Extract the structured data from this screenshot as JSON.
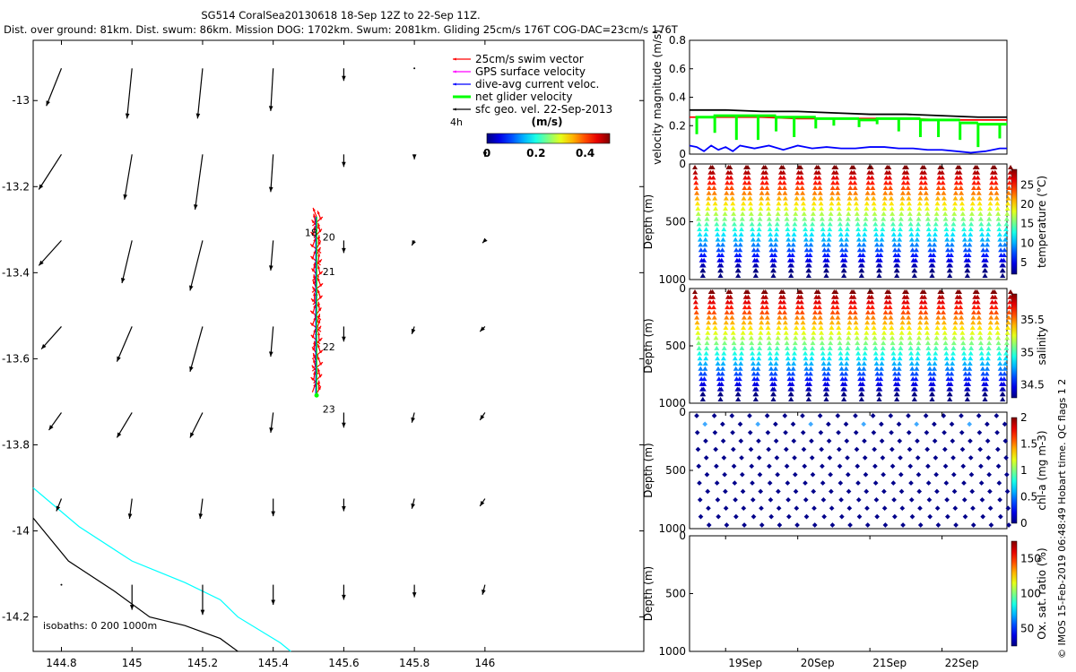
{
  "header": {
    "line1": "SG514 CoralSea20130618 18-Sep 12Z to 22-Sep 11Z.",
    "line2": "Dist. over ground: 81km. Dist. swum: 86km. Mission DOG: 1702km. Swum: 2081km. Gliding 25cm/s 176T COG-DAC=23cm/s 176T"
  },
  "watermark": "© IMOS 15-Feb-2019 06:48:49 Hobart time. QC flags 1 2",
  "colors": {
    "swim": "#ff0000",
    "gps": "#ff00ff",
    "current": "#0000ff",
    "net": "#00ff00",
    "geo": "#000000",
    "isobath0": "#000000",
    "isobath200": "#00ffff"
  },
  "chart_data": [
    {
      "type": "scatter",
      "name": "map",
      "xlim": [
        144.72,
        146.45
      ],
      "ylim": [
        -14.28,
        -12.86
      ],
      "xticks": [
        144.8,
        145,
        145.2,
        145.4,
        145.6,
        145.8,
        146
      ],
      "xtick_labels": [
        "144.8",
        "145",
        "145.2",
        "145.4",
        "145.6",
        "145.8",
        "146"
      ],
      "yticks": [
        -13,
        -13.2,
        -13.4,
        -13.6,
        -13.8,
        -14,
        -14.2
      ],
      "ytick_labels": [
        "-13",
        "-13.2",
        "-13.4",
        "-13.6",
        "-13.8",
        "-14",
        "-14.2"
      ],
      "legend": {
        "placement": "top-right",
        "entries": [
          "25cm/s swim vector",
          "GPS surface velocity",
          "dive-avg current veloc.",
          "net glider velocity",
          "sfc geo. vel. 22-Sep-2013"
        ]
      },
      "colorbar": {
        "label": "(m/s)",
        "min": 0,
        "max": 0.5,
        "ticks": [
          0,
          0.2,
          0.4
        ],
        "tick_labels": [
          "0",
          "0.2",
          "0.4"
        ]
      },
      "annotations": {
        "scale_text": "4h",
        "isobaths_text": "isobaths: 0   200  1000m"
      },
      "day_labels": [
        {
          "text": "18",
          "lon": 145.525,
          "lat": -13.315
        },
        {
          "text": "20",
          "lon": 145.54,
          "lat": -13.325
        },
        {
          "text": "21",
          "lon": 145.54,
          "lat": -13.405
        },
        {
          "text": "22",
          "lon": 145.54,
          "lat": -13.58
        },
        {
          "text": "23",
          "lon": 145.54,
          "lat": -13.725
        }
      ],
      "track": {
        "lon": 145.523,
        "lat_start": -13.27,
        "lat_end": -13.685
      },
      "isobath_0": [
        [
          144.72,
          -13.97
        ],
        [
          144.82,
          -14.07
        ],
        [
          144.95,
          -14.14
        ],
        [
          145.05,
          -14.2
        ],
        [
          145.15,
          -14.22
        ],
        [
          145.25,
          -14.25
        ],
        [
          145.3,
          -14.28
        ]
      ],
      "isobath_200": [
        [
          144.72,
          -13.9
        ],
        [
          144.85,
          -13.99
        ],
        [
          145.0,
          -14.07
        ],
        [
          145.15,
          -14.12
        ],
        [
          145.25,
          -14.16
        ],
        [
          145.3,
          -14.2
        ],
        [
          145.42,
          -14.26
        ],
        [
          145.45,
          -14.28
        ]
      ],
      "geo_vectors": {
        "lons": [
          144.8,
          145.0,
          145.2,
          145.4,
          145.6,
          145.8,
          146.0
        ],
        "lats": [
          -13.05,
          -13.25,
          -13.45,
          -13.65,
          -13.85,
          -14.05,
          -14.25
        ],
        "u": [
          [
            -0.06,
            -0.02,
            -0.02,
            -0.01,
            0.0,
            0.0,
            0.0
          ],
          [
            -0.09,
            -0.03,
            -0.03,
            -0.01,
            0.0,
            0.0,
            0.0
          ],
          [
            -0.09,
            -0.04,
            -0.05,
            -0.01,
            0.0,
            -0.01,
            -0.01
          ],
          [
            -0.08,
            -0.06,
            -0.05,
            -0.01,
            0.0,
            -0.01,
            -0.02
          ],
          [
            -0.05,
            -0.06,
            -0.05,
            -0.01,
            0.0,
            -0.01,
            -0.02
          ],
          [
            -0.02,
            -0.01,
            -0.01,
            0.0,
            0.0,
            -0.01,
            -0.02
          ],
          [
            0.0,
            0.0,
            0.0,
            0.0,
            0.0,
            0.0,
            -0.01
          ]
        ],
        "v": [
          [
            -0.15,
            -0.2,
            -0.2,
            -0.17,
            -0.05,
            0.0,
            0.0
          ],
          [
            -0.14,
            -0.18,
            -0.22,
            -0.15,
            -0.05,
            -0.02,
            -0.01
          ],
          [
            -0.1,
            -0.17,
            -0.2,
            -0.12,
            -0.05,
            -0.02,
            -0.01
          ],
          [
            -0.09,
            -0.14,
            -0.18,
            -0.12,
            -0.06,
            -0.03,
            -0.02
          ],
          [
            -0.07,
            -0.1,
            -0.1,
            -0.08,
            -0.06,
            -0.04,
            -0.03
          ],
          [
            -0.05,
            -0.08,
            -0.08,
            -0.07,
            -0.05,
            -0.04,
            -0.03
          ],
          [
            0.0,
            -0.1,
            -0.12,
            -0.08,
            -0.06,
            -0.05,
            -0.04
          ]
        ]
      }
    },
    {
      "type": "line",
      "name": "velocity",
      "ylabel": "velocity magnitude (m/s)",
      "ylim": [
        0,
        0.8
      ],
      "yticks": [
        0,
        0.2,
        0.4,
        0.6,
        0.8
      ],
      "ytick_labels": [
        "0",
        "0.2",
        "0.4",
        "0.6",
        "0.8"
      ],
      "xlim": [
        18.5,
        22.9
      ],
      "series": [
        {
          "color": "#000000",
          "x": [
            18.5,
            19.0,
            19.5,
            20.0,
            20.5,
            21.0,
            21.5,
            22.0,
            22.5,
            22.9
          ],
          "y": [
            0.31,
            0.31,
            0.3,
            0.3,
            0.29,
            0.28,
            0.28,
            0.27,
            0.26,
            0.26
          ]
        },
        {
          "color": "#ff0000",
          "x": [
            18.5,
            19.0,
            19.5,
            20.0,
            20.5,
            21.0,
            21.5,
            22.0,
            22.5,
            22.9
          ],
          "y": [
            0.26,
            0.26,
            0.26,
            0.25,
            0.25,
            0.25,
            0.25,
            0.24,
            0.24,
            0.24
          ]
        },
        {
          "color": "#0000ff",
          "x": [
            18.5,
            18.6,
            18.7,
            18.8,
            18.9,
            19.0,
            19.1,
            19.2,
            19.4,
            19.6,
            19.8,
            20.0,
            20.2,
            20.4,
            20.6,
            20.8,
            21.0,
            21.2,
            21.4,
            21.6,
            21.8,
            22.0,
            22.2,
            22.4,
            22.6,
            22.8,
            22.9
          ],
          "y": [
            0.06,
            0.05,
            0.02,
            0.06,
            0.03,
            0.05,
            0.02,
            0.06,
            0.04,
            0.06,
            0.03,
            0.06,
            0.04,
            0.05,
            0.04,
            0.04,
            0.05,
            0.05,
            0.04,
            0.04,
            0.03,
            0.03,
            0.02,
            0.01,
            0.02,
            0.04,
            0.04
          ]
        }
      ],
      "net_velocity": {
        "color": "#00ff00",
        "steps_x": [
          18.6,
          18.85,
          19.15,
          19.45,
          19.7,
          19.95,
          20.25,
          20.5,
          20.85,
          21.1,
          21.4,
          21.7,
          21.95,
          22.25,
          22.5,
          22.8
        ],
        "top": [
          0.26,
          0.27,
          0.27,
          0.27,
          0.26,
          0.26,
          0.25,
          0.25,
          0.24,
          0.25,
          0.25,
          0.24,
          0.24,
          0.22,
          0.21,
          0.21
        ],
        "bottom": [
          0.14,
          0.15,
          0.1,
          0.1,
          0.16,
          0.12,
          0.18,
          0.2,
          0.19,
          0.21,
          0.16,
          0.12,
          0.12,
          0.1,
          0.05,
          0.11
        ]
      }
    },
    {
      "type": "scatter",
      "name": "temperature",
      "ylabel": "Depth (m)",
      "cbar_label": "temperature (°C)",
      "cbar_ticks": [
        5,
        10,
        15,
        20,
        25
      ],
      "cbar_range": [
        2,
        29
      ],
      "yticks": [
        0,
        500,
        1000
      ],
      "dives": 18,
      "style": "triangles"
    },
    {
      "type": "scatter",
      "name": "salinity",
      "ylabel": "Depth (m)",
      "cbar_label": "salinity",
      "cbar_ticks": [
        34.5,
        35,
        35.5
      ],
      "cbar_range": [
        34.3,
        35.9
      ],
      "yticks": [
        0,
        500,
        1000
      ],
      "dives": 18,
      "style": "triangles"
    },
    {
      "type": "scatter",
      "name": "chla",
      "ylabel": "Depth (m)",
      "cbar_label": "chl-a (mg m-3)",
      "cbar_ticks": [
        0,
        0.5,
        1,
        1.5,
        2
      ],
      "cbar_range": [
        0,
        2
      ],
      "yticks": [
        0,
        500,
        1000
      ],
      "dives": 18,
      "style": "diamonds"
    },
    {
      "type": "scatter",
      "name": "oxygen",
      "ylabel": "Depth (m)",
      "cbar_label": "Ox. sat. ratio (%)",
      "cbar_ticks": [
        50,
        100,
        150
      ],
      "cbar_range": [
        25,
        175
      ],
      "yticks": [
        0,
        500,
        1000
      ],
      "xticks": [
        "19Sep",
        "20Sep",
        "21Sep",
        "22Sep"
      ],
      "xtick_days": [
        19,
        20,
        21,
        22
      ],
      "xlim": [
        18.5,
        22.9
      ]
    }
  ]
}
